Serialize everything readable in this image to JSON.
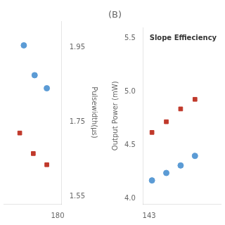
{
  "chart_data": [
    {
      "type": "scatter",
      "y2label": "Pulsewidth(μs)",
      "xlim": [
        140,
        183
      ],
      "xticks": [
        180
      ],
      "y2lim": [
        1.53,
        2.02
      ],
      "y2ticks": [
        1.55,
        1.75,
        1.95
      ],
      "grid": false,
      "series": [
        {
          "color": "#5b9bd5",
          "marker": "circle",
          "axis": "y2",
          "x": [
            155,
            163,
            172
          ],
          "values": [
            1.955,
            1.875,
            1.84
          ]
        },
        {
          "color": "#c0392b",
          "marker": "square",
          "axis": "y2",
          "x": [
            152,
            162,
            172
          ],
          "values": [
            1.72,
            1.665,
            1.635
          ]
        }
      ]
    },
    {
      "type": "scatter",
      "title": "(B)",
      "ylabel": "Output Power (mW)",
      "annotation": "Slope Effieciency",
      "xlim": [
        141,
        168
      ],
      "xticks": [
        143
      ],
      "ylim": [
        3.95,
        5.6
      ],
      "yticks": [
        {
          "value": 4.0,
          "label": "4.0"
        },
        4.5,
        {
          "value": 5.0,
          "label": "5.0"
        },
        5.5
      ],
      "grid": false,
      "series": [
        {
          "color": "#5b9bd5",
          "marker": "circle",
          "x": [
            144,
            149,
            154,
            159
          ],
          "values": [
            4.17,
            4.24,
            4.31,
            4.4
          ]
        },
        {
          "color": "#c0392b",
          "marker": "square",
          "x": [
            144,
            149,
            154,
            159
          ],
          "values": [
            4.62,
            4.72,
            4.84,
            4.93
          ]
        }
      ]
    }
  ]
}
